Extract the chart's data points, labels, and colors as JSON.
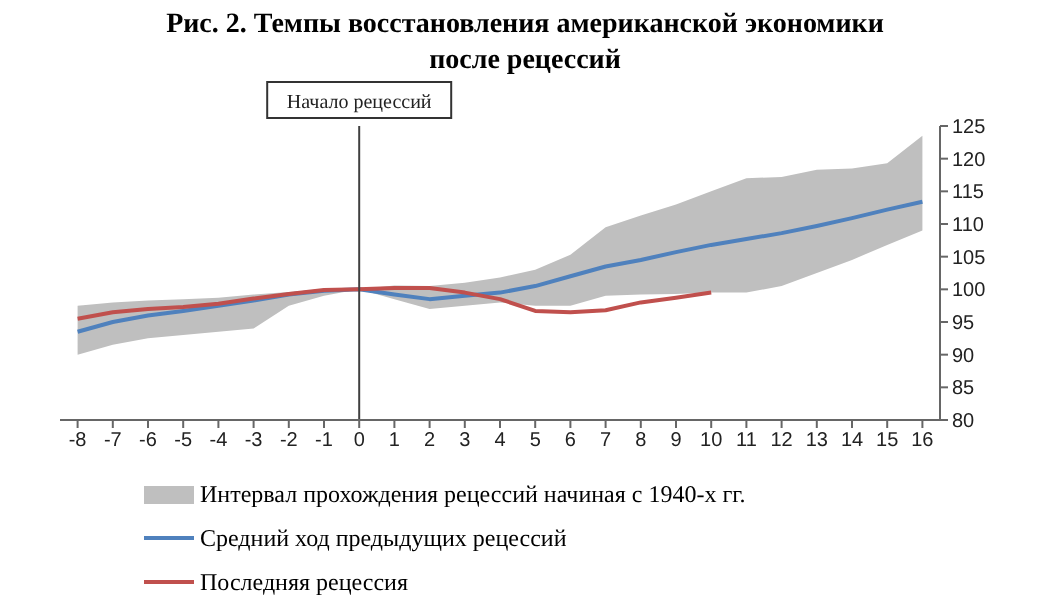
{
  "chart_data": {
    "type": "line",
    "title": "Рис. 2. Темпы восстановления американской экономики после рецессий",
    "x": [
      -8,
      -7,
      -6,
      -5,
      -4,
      -3,
      -2,
      -1,
      0,
      1,
      2,
      3,
      4,
      5,
      6,
      7,
      8,
      9,
      10,
      11,
      12,
      13,
      14,
      15,
      16
    ],
    "series": [
      {
        "name": "Средний ход предыдущих рецессий",
        "color": "#4f81bd",
        "values": [
          93.5,
          95,
          96,
          96.7,
          97.5,
          98.3,
          99.2,
          99.8,
          100,
          99.2,
          98.5,
          99,
          99.5,
          100.5,
          102,
          103.5,
          104.5,
          105.7,
          106.8,
          107.7,
          108.6,
          109.7,
          110.9,
          112.2,
          113.4
        ],
        "lower": [
          90,
          91.5,
          92.5,
          93,
          93.5,
          94,
          97.5,
          99,
          100,
          98.5,
          97,
          97.5,
          98,
          97.5,
          97.5,
          99,
          99.2,
          99.3,
          99.5,
          99.5,
          100.5,
          102.5,
          104.5,
          106.8,
          109
        ],
        "upper": [
          97.5,
          98,
          98.3,
          98.5,
          98.7,
          99.2,
          99.6,
          100,
          100,
          100.6,
          100.5,
          101,
          101.8,
          103,
          105.3,
          109.5,
          111.3,
          113,
          115,
          117,
          117.2,
          118.3,
          118.5,
          119.3,
          123.5
        ]
      },
      {
        "name": "Последняя рецессия",
        "color": "#c0504d",
        "values": [
          95.5,
          96.5,
          97,
          97.3,
          97.8,
          98.6,
          99.3,
          99.9,
          100,
          100.2,
          100.2,
          99.5,
          98.5,
          96.7,
          96.5,
          96.8,
          98,
          98.7,
          99.5,
          null,
          null,
          null,
          null,
          null,
          null
        ]
      }
    ],
    "annotations": [
      "Интервал прохождения рецессий начиная с 1940-х гг."
    ],
    "xlim": [
      -8.5,
      16.5
    ],
    "xticks": [
      -8,
      -7,
      -6,
      -5,
      -4,
      -3,
      -2,
      -1,
      0,
      1,
      2,
      3,
      4,
      5,
      6,
      7,
      8,
      9,
      10,
      11,
      12,
      13,
      14,
      15,
      16
    ],
    "ylim": [
      80,
      125
    ],
    "yticks": [
      80,
      85,
      90,
      95,
      100,
      105,
      110,
      115,
      120,
      125
    ],
    "ref_lines": [
      {
        "axis": "x",
        "value": 0,
        "label": "Начало рецессий",
        "color": "#404040"
      }
    ],
    "grid": false,
    "legend": "bottom",
    "marker": "none",
    "line_style": "solid"
  }
}
